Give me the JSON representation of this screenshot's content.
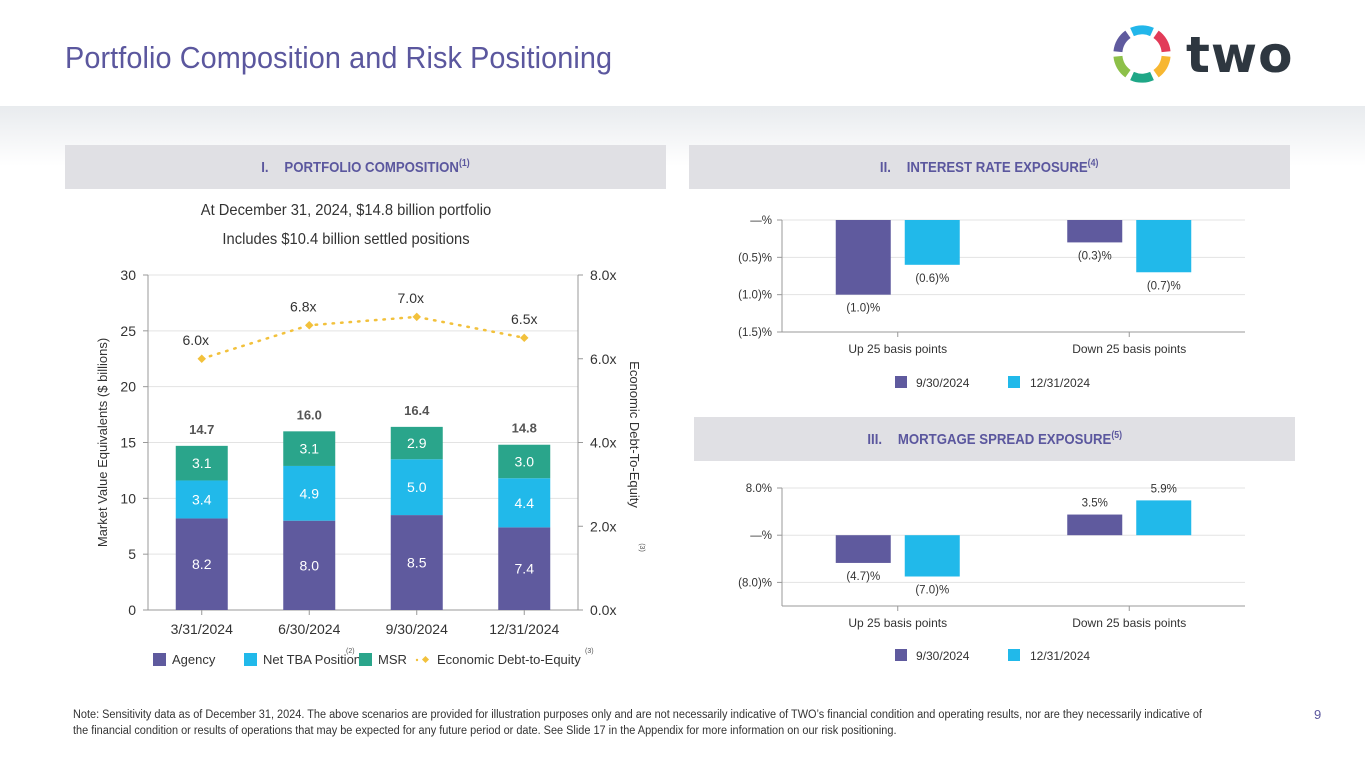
{
  "header": {
    "title": "Portfolio Composition and Risk Positioning",
    "logo_text": "two"
  },
  "sections": {
    "composition": {
      "num": "I.",
      "label": "PORTFOLIO COMPOSITION",
      "footnote": "(1)"
    },
    "interest": {
      "num": "II.",
      "label": "INTEREST RATE EXPOSURE",
      "footnote": "(4)"
    },
    "spread": {
      "num": "III.",
      "label": "MORTGAGE SPREAD EXPOSURE",
      "footnote": "(5)"
    }
  },
  "composition_subtitle": {
    "line1": "At December 31, 2024, $14.8 billion portfolio",
    "line2": "Includes $10.4 billion settled positions"
  },
  "colors": {
    "agency": "#5f5a9e",
    "tba": "#21b9ea",
    "msr": "#2aa58b",
    "leverage": "#f2c13c",
    "accent": "#5b579e"
  },
  "chart_data": [
    {
      "type": "bar",
      "stacked": true,
      "categories": [
        "3/31/2024",
        "6/30/2024",
        "9/30/2024",
        "12/31/2024"
      ],
      "series": [
        {
          "name": "Agency",
          "values": [
            8.2,
            8.0,
            8.5,
            7.4
          ]
        },
        {
          "name": "Net TBA Position",
          "footnote": "(2)",
          "values": [
            3.4,
            4.9,
            5.0,
            4.4
          ]
        },
        {
          "name": "MSR",
          "values": [
            3.1,
            3.1,
            2.9,
            3.0
          ]
        }
      ],
      "totals": [
        "14.7",
        "16.0",
        "16.4",
        "14.8"
      ],
      "line_series": {
        "name": "Economic Debt-to-Equity",
        "footnote": "(3)",
        "values": [
          6.0,
          6.8,
          7.0,
          6.5
        ],
        "labels": [
          "6.0x",
          "6.8x",
          "7.0x",
          "6.5x"
        ]
      },
      "ylabel": "Market Value Equivalents ($ billions)",
      "y2label": "Economic Debt-To-Equity",
      "y2label_footnote": "(3)",
      "ylim": [
        0,
        30
      ],
      "yticks": [
        0,
        5,
        10,
        15,
        20,
        25,
        30
      ],
      "y2lim": [
        0,
        8
      ],
      "y2ticks": [
        "0.0x",
        "2.0x",
        "4.0x",
        "6.0x",
        "8.0x"
      ],
      "grid": true,
      "legend": "bottom"
    },
    {
      "type": "bar",
      "title": "Interest Rate Exposure",
      "categories": [
        "Up 25 basis points",
        "Down 25 basis points"
      ],
      "series": [
        {
          "name": "9/30/2024",
          "values": [
            -1.0,
            -0.3
          ],
          "labels": [
            "(1.0)%",
            "(0.3)%"
          ]
        },
        {
          "name": "12/31/2024",
          "values": [
            -0.6,
            -0.7
          ],
          "labels": [
            "(0.6)%",
            "(0.7)%"
          ]
        }
      ],
      "ylim": [
        -1.5,
        0
      ],
      "yticks": [
        0,
        -0.5,
        -1.0,
        -1.5
      ],
      "ytick_labels": [
        "—%",
        "(0.5)%",
        "(1.0)%",
        "(1.5)%"
      ],
      "grid": true,
      "legend": "bottom"
    },
    {
      "type": "bar",
      "title": "Mortgage Spread Exposure",
      "categories": [
        "Up 25 basis points",
        "Down 25 basis points"
      ],
      "series": [
        {
          "name": "9/30/2024",
          "values": [
            -4.7,
            3.5
          ],
          "labels": [
            "(4.7)%",
            "3.5%"
          ]
        },
        {
          "name": "12/31/2024",
          "values": [
            -7.0,
            5.9
          ],
          "labels": [
            "(7.0)%",
            "5.9%"
          ]
        }
      ],
      "ylim": [
        -12,
        8
      ],
      "yticks": [
        8,
        0,
        -8
      ],
      "ytick_labels": [
        "8.0%",
        "—%",
        "(8.0)%"
      ],
      "grid": true,
      "legend": "bottom"
    }
  ],
  "footer": {
    "note": "Note: Sensitivity data as of December 31, 2024. The above scenarios are provided for illustration purposes only and are not necessarily indicative of TWO’s financial condition and operating results, nor are they necessarily indicative of the financial condition or results of operations that may be expected for any future period or date. See Slide 17 in the Appendix for more information on our risk positioning.",
    "page_number": "9"
  }
}
